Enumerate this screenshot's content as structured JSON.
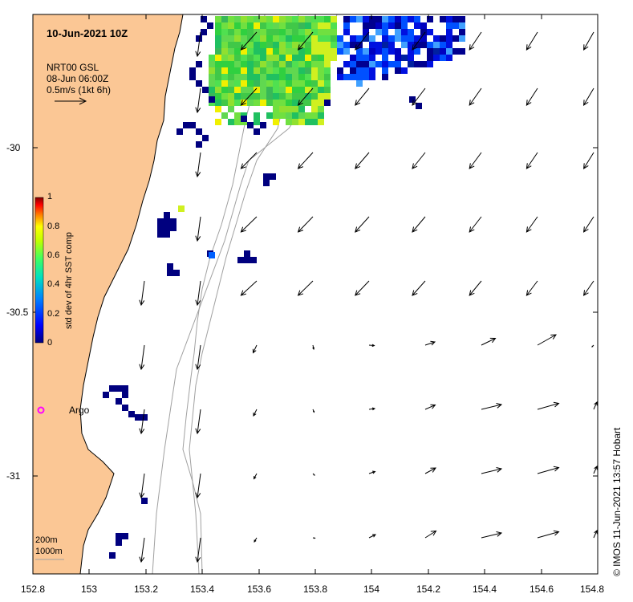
{
  "title": "10-Jun-2021 10Z",
  "current_legend": {
    "source": "NRT00 GSL",
    "time": "08-Jun 06:00Z",
    "scale": "0.5m/s (1kt 6h)"
  },
  "colorbar": {
    "label": "std dev of 4hr SST comp",
    "ticks": [
      "0",
      "0.2",
      "0.4",
      "0.6",
      "0.8",
      "1"
    ],
    "colors": [
      "#00007f",
      "#0000ff",
      "#0080ff",
      "#00e0e0",
      "#40ff80",
      "#c0ff00",
      "#ffff00",
      "#ff8000",
      "#ff0000",
      "#800000"
    ]
  },
  "argo": {
    "label": "Argo",
    "color": "#ff00ff"
  },
  "isobaths": [
    "200m",
    "1000m"
  ],
  "x_ticks": [
    "152.8",
    "153",
    "153.2",
    "153.4",
    "153.6",
    "153.8",
    "154",
    "154.2",
    "154.4",
    "154.6",
    "154.8"
  ],
  "y_ticks": [
    "-30",
    "-30.5",
    "-31"
  ],
  "credit": "© IMOS 11-Jun-2021 13:57 Hobart",
  "colors": {
    "land": "#fbc795",
    "coast": "#000000",
    "isobath": "#a0a0a0"
  }
}
